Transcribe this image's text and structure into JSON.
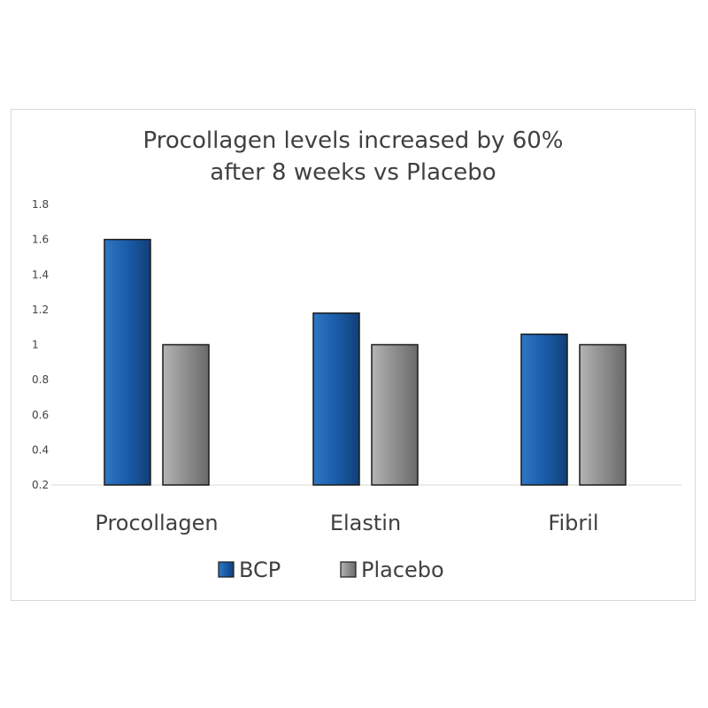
{
  "chart_data": {
    "type": "bar",
    "title": "Procollagen levels increased by 60% after 8 weeks vs Placebo",
    "title_lines": [
      "Procollagen levels increased by 60%",
      "after 8 weeks vs Placebo"
    ],
    "categories": [
      "Procollagen",
      "Elastin",
      "Fibril"
    ],
    "series": [
      {
        "name": "BCP",
        "values": [
          1.6,
          1.18,
          1.06
        ],
        "color": "#1f5fa8"
      },
      {
        "name": "Placebo",
        "values": [
          1.0,
          1.0,
          1.0
        ],
        "color": "#8c8c8c"
      }
    ],
    "yticks": [
      "0.2",
      "0.4",
      "0.6",
      "0.8",
      "1",
      "1.2",
      "1.4",
      "1.6",
      "1.8"
    ],
    "ylim": [
      0.2,
      1.8
    ],
    "xlabel": "",
    "ylabel": "",
    "grid": false,
    "legend": "bottom"
  }
}
